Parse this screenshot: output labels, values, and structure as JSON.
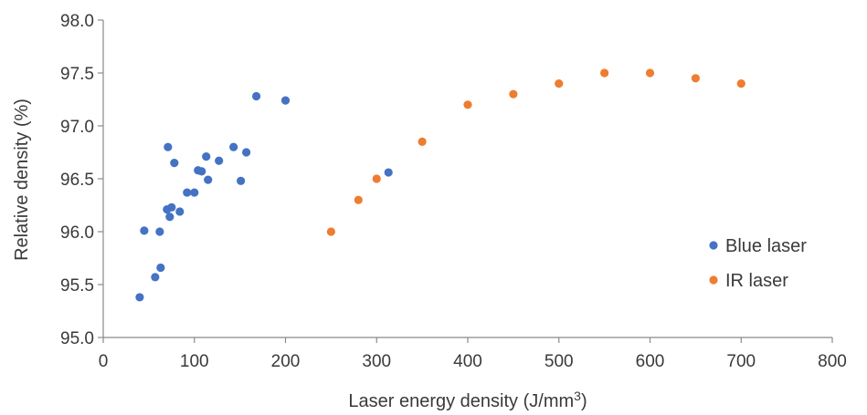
{
  "chart_data": {
    "type": "scatter",
    "title": "",
    "xlabel": "Laser energy density (J/mm",
    "xlabel_superscript": "3",
    "xlabel_suffix": ")",
    "ylabel": "Relative density (%)",
    "xlim": [
      0,
      800
    ],
    "ylim": [
      95.0,
      98.0
    ],
    "xticks": [
      0,
      100,
      200,
      300,
      400,
      500,
      600,
      700,
      800
    ],
    "yticks": [
      95.0,
      95.5,
      96.0,
      96.5,
      97.0,
      97.5,
      98.0
    ],
    "ytick_labels": [
      "95.0",
      "95.5",
      "96.0",
      "96.5",
      "97.0",
      "97.5",
      "98.0"
    ],
    "grid": false,
    "legend_position": "right",
    "series": [
      {
        "name": "Blue laser",
        "color": "#4472c4",
        "points": [
          [
            40,
            95.38
          ],
          [
            45,
            96.01
          ],
          [
            57,
            95.57
          ],
          [
            62,
            96.0
          ],
          [
            63,
            95.66
          ],
          [
            70,
            96.21
          ],
          [
            71,
            96.8
          ],
          [
            73,
            96.14
          ],
          [
            75,
            96.23
          ],
          [
            78,
            96.65
          ],
          [
            84,
            96.19
          ],
          [
            92,
            96.37
          ],
          [
            100,
            96.37
          ],
          [
            104,
            96.58
          ],
          [
            108,
            96.57
          ],
          [
            113,
            96.71
          ],
          [
            115,
            96.49
          ],
          [
            127,
            96.67
          ],
          [
            143,
            96.8
          ],
          [
            151,
            96.48
          ],
          [
            157,
            96.75
          ],
          [
            168,
            97.28
          ],
          [
            200,
            97.24
          ],
          [
            313,
            96.56
          ]
        ]
      },
      {
        "name": "IR laser",
        "color": "#ed7d31",
        "points": [
          [
            250,
            96.0
          ],
          [
            280,
            96.3
          ],
          [
            300,
            96.5
          ],
          [
            350,
            96.85
          ],
          [
            400,
            97.2
          ],
          [
            450,
            97.3
          ],
          [
            500,
            97.4
          ],
          [
            550,
            97.5
          ],
          [
            600,
            97.5
          ],
          [
            650,
            97.45
          ],
          [
            700,
            97.4
          ]
        ]
      }
    ]
  }
}
